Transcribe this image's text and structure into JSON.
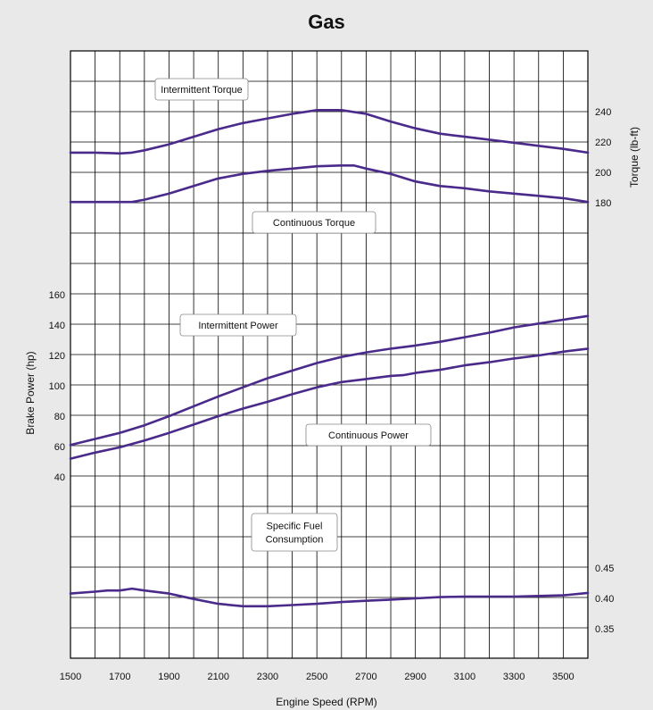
{
  "title": "Gas",
  "xlabel": "Engine Speed (RPM)",
  "ylabel_left": "Brake Power (hp)",
  "ylabel_right": "Torque (lb-ft)",
  "colors": {
    "background": "#e9e9e9",
    "plot": "#ffffff",
    "grid": "#000000",
    "curve": "#4a2a8a"
  },
  "chart_data": {
    "type": "line",
    "x_ticks": [
      "1500",
      "1700",
      "1900",
      "2100",
      "2300",
      "2500",
      "2700",
      "2900",
      "3100",
      "3300",
      "3500"
    ],
    "x_range": [
      1500,
      3600
    ],
    "power_axis": {
      "ticks": [
        "40",
        "60",
        "80",
        "100",
        "120",
        "140",
        "160"
      ],
      "range": [
        40,
        160
      ]
    },
    "torque_axis": {
      "ticks": [
        "180",
        "200",
        "220",
        "240"
      ],
      "range": [
        180,
        240
      ]
    },
    "fuel_axis": {
      "ticks": [
        "0.35",
        "0.40",
        "0.45"
      ],
      "range": [
        0.35,
        0.45
      ]
    },
    "grid": true,
    "series": [
      {
        "name": "Intermittent Torque",
        "axis": "torque",
        "x": [
          1500,
          1600,
          1700,
          1750,
          1800,
          1900,
          2000,
          2100,
          2200,
          2300,
          2400,
          2500,
          2600,
          2700,
          2800,
          2900,
          3000,
          3100,
          3200,
          3300,
          3400,
          3500,
          3600
        ],
        "y": [
          213,
          213,
          212.5,
          213,
          214.5,
          218.5,
          223.5,
          228.5,
          232.5,
          235.5,
          238.5,
          241,
          241,
          238.5,
          233.5,
          229,
          225.5,
          223.5,
          221.5,
          219.5,
          217.5,
          215.5,
          213
        ]
      },
      {
        "name": "Continuous Torque",
        "axis": "torque",
        "x": [
          1500,
          1600,
          1700,
          1750,
          1800,
          1900,
          2000,
          2100,
          2200,
          2300,
          2400,
          2500,
          2600,
          2650,
          2700,
          2800,
          2900,
          3000,
          3100,
          3200,
          3300,
          3400,
          3500,
          3600
        ],
        "y": [
          180.5,
          180.5,
          180.5,
          180.5,
          182,
          186,
          191,
          196,
          199,
          201,
          202.5,
          204,
          204.5,
          204.5,
          202.5,
          199,
          194,
          191,
          189.5,
          187.5,
          186,
          184.5,
          183,
          180.5
        ]
      },
      {
        "name": "Intermittent Power",
        "axis": "power",
        "x": [
          1500,
          1600,
          1700,
          1800,
          1900,
          2000,
          2100,
          2200,
          2300,
          2400,
          2500,
          2600,
          2700,
          2800,
          2900,
          3000,
          3100,
          3200,
          3300,
          3400,
          3500,
          3600
        ],
        "y": [
          61,
          65,
          69,
          74,
          80,
          86.5,
          93,
          99,
          105,
          110,
          115,
          119,
          122,
          124.5,
          126.5,
          129,
          132,
          135,
          138.5,
          141,
          143.5,
          146
        ]
      },
      {
        "name": "Continuous Power",
        "axis": "power",
        "x": [
          1500,
          1600,
          1700,
          1800,
          1900,
          2000,
          2100,
          2200,
          2300,
          2400,
          2500,
          2600,
          2700,
          2800,
          2850,
          2900,
          3000,
          3100,
          3200,
          3300,
          3400,
          3500,
          3600
        ],
        "y": [
          52,
          56,
          59.5,
          64,
          69,
          74.5,
          80,
          85,
          89.5,
          94.5,
          99,
          102.5,
          104.5,
          106.5,
          107,
          108.5,
          110.5,
          113.5,
          115.5,
          118,
          120,
          122.5,
          124.5
        ]
      },
      {
        "name": "Specific Fuel Consumption",
        "axis": "fuel",
        "x": [
          1500,
          1600,
          1650,
          1700,
          1750,
          1800,
          1900,
          2000,
          2100,
          2200,
          2300,
          2400,
          2500,
          2600,
          2700,
          2800,
          2900,
          3000,
          3100,
          3200,
          3300,
          3400,
          3500,
          3600
        ],
        "y": [
          0.408,
          0.411,
          0.413,
          0.413,
          0.416,
          0.413,
          0.408,
          0.399,
          0.391,
          0.387,
          0.387,
          0.389,
          0.391,
          0.394,
          0.396,
          0.398,
          0.4,
          0.402,
          0.403,
          0.403,
          0.403,
          0.404,
          0.405,
          0.409
        ]
      }
    ],
    "curve_labels": [
      "Intermittent Torque",
      "Continuous Torque",
      "Intermittent Power",
      "Continuous Power",
      "Specific Fuel\nConsumption"
    ]
  }
}
